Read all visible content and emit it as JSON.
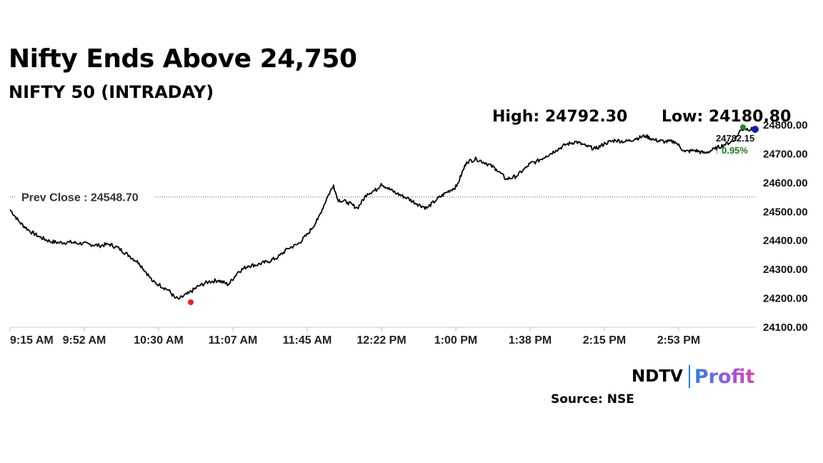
{
  "header": {
    "title": "Nifty Ends Above 24,750",
    "subtitle": "NIFTY 50 (INTRADAY)",
    "high_text": "High: 24792.30",
    "low_text": "Low: 24180.80"
  },
  "footer": {
    "brand_ndtv": "NDTV",
    "brand_profit": "Profit",
    "source": "Source: NSE"
  },
  "colors": {
    "line": "#000000",
    "low_marker": "#e02020",
    "high_marker": "#1e8a1e",
    "last_marker": "#1a1aa8",
    "change_up": "#1e7a1e",
    "gridline": "#dddddd"
  },
  "chart_data": {
    "type": "line",
    "title": "NIFTY 50 (INTRADAY)",
    "xlabel": "",
    "ylabel": "",
    "x_ticks": [
      "9:15 AM",
      "9:52 AM",
      "10:30 AM",
      "11:07 AM",
      "11:45 AM",
      "12:22 PM",
      "1:00 PM",
      "1:38 PM",
      "2:15 PM",
      "2:53 PM"
    ],
    "y_ticks": [
      "24800.00",
      "24700.00",
      "24600.00",
      "24500.00",
      "24400.00",
      "24300.00",
      "24200.00",
      "24100.00"
    ],
    "ylim": [
      24100,
      24800
    ],
    "grid": false,
    "reference_line": {
      "label": "Prev Close : 24548.70",
      "value": 24548.7
    },
    "high": 24792.3,
    "low": 24180.8,
    "last_value_label": "24782.15",
    "change_label": "↑ 0.95%",
    "series": [
      {
        "x_minutes": [
          0,
          5,
          10,
          15,
          20,
          25,
          30,
          35,
          40,
          45,
          50,
          55,
          60,
          65,
          70,
          72,
          75,
          80,
          83,
          85,
          90,
          95,
          100,
          105,
          110,
          115,
          120,
          125,
          130,
          135,
          140,
          145,
          150,
          155,
          160,
          163,
          165,
          170,
          175,
          180,
          185,
          187,
          190,
          195,
          200,
          205,
          210,
          215,
          220,
          225,
          230,
          235,
          240,
          245,
          250,
          255,
          260,
          262,
          265,
          270,
          275,
          280,
          285,
          290,
          295,
          300,
          305,
          310,
          315,
          320,
          325,
          330,
          335,
          340,
          345,
          350,
          355,
          360,
          365,
          368,
          370,
          375
        ],
        "values": [
          24505,
          24460,
          24430,
          24410,
          24395,
          24390,
          24392,
          24388,
          24385,
          24380,
          24385,
          24370,
          24345,
          24320,
          24275,
          24255,
          24245,
          24225,
          24200,
          24195,
          24215,
          24240,
          24255,
          24260,
          24245,
          24290,
          24310,
          24315,
          24325,
          24340,
          24370,
          24385,
          24420,
          24470,
          24550,
          24590,
          24540,
          24530,
          24510,
          24560,
          24575,
          24595,
          24580,
          24560,
          24545,
          24525,
          24510,
          24540,
          24565,
          24585,
          24670,
          24680,
          24665,
          24645,
          24610,
          24620,
          24650,
          24665,
          24670,
          24690,
          24710,
          24730,
          24740,
          24725,
          24715,
          24735,
          24745,
          24740,
          24750,
          24760,
          24745,
          24740,
          24740,
          24705,
          24710,
          24700,
          24715,
          24730,
          24745,
          24780,
          24785,
          24782.15
        ]
      }
    ]
  }
}
